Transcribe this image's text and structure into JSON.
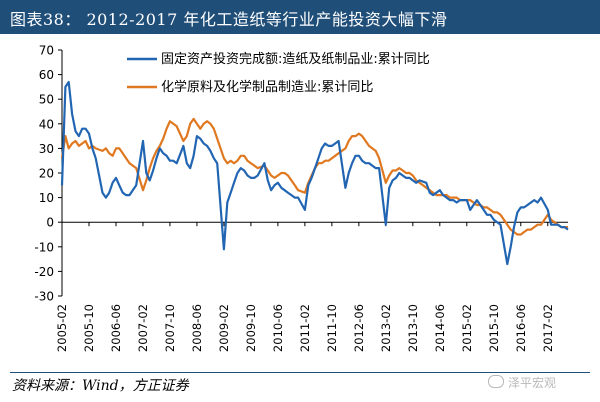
{
  "header": {
    "title": "图表38：  2012-2017 年化工造纸等行业产能投资大幅下滑"
  },
  "source": "资料来源：Wind，方正证券",
  "watermark": "泽平宏观",
  "colors": {
    "series1": "#2266b3",
    "series2": "#e07820",
    "title_bg": "#1f4e79"
  },
  "chart_data": {
    "type": "line",
    "title": "图表38：  2012-2017 年化工造纸等行业产能投资大幅下滑",
    "ylim": [
      -30,
      70
    ],
    "yticks": [
      -30,
      -20,
      -10,
      0,
      10,
      20,
      30,
      40,
      50,
      60,
      70
    ],
    "x_start": "2005-02",
    "x_end": "2017-08",
    "xtick_labels": [
      "2005-02",
      "2005-10",
      "2006-06",
      "2007-02",
      "2007-10",
      "2008-06",
      "2009-02",
      "2009-10",
      "2010-06",
      "2011-02",
      "2011-10",
      "2012-06",
      "2013-02",
      "2013-10",
      "2014-06",
      "2015-02",
      "2015-10",
      "2016-06",
      "2017-02"
    ],
    "legend_position": "top-center",
    "grid": false,
    "series": [
      {
        "name": "固定资产投资完成额:造纸及纸制品业:累计同比",
        "points": [
          [
            "2005-02",
            15
          ],
          [
            "2005-03",
            55
          ],
          [
            "2005-04",
            57
          ],
          [
            "2005-05",
            44
          ],
          [
            "2005-06",
            37
          ],
          [
            "2005-07",
            35
          ],
          [
            "2005-08",
            38
          ],
          [
            "2005-09",
            38
          ],
          [
            "2005-10",
            36
          ],
          [
            "2005-11",
            30
          ],
          [
            "2005-12",
            26
          ],
          [
            "2006-02",
            12
          ],
          [
            "2006-03",
            10
          ],
          [
            "2006-04",
            12
          ],
          [
            "2006-05",
            16
          ],
          [
            "2006-06",
            18
          ],
          [
            "2006-07",
            15
          ],
          [
            "2006-08",
            12
          ],
          [
            "2006-09",
            11
          ],
          [
            "2006-10",
            11
          ],
          [
            "2006-11",
            13
          ],
          [
            "2006-12",
            15
          ],
          [
            "2007-02",
            33
          ],
          [
            "2007-03",
            20
          ],
          [
            "2007-04",
            17
          ],
          [
            "2007-05",
            21
          ],
          [
            "2007-06",
            26
          ],
          [
            "2007-07",
            30
          ],
          [
            "2007-08",
            28
          ],
          [
            "2007-09",
            27
          ],
          [
            "2007-10",
            25
          ],
          [
            "2007-11",
            25
          ],
          [
            "2007-12",
            24
          ],
          [
            "2008-02",
            31
          ],
          [
            "2008-03",
            24
          ],
          [
            "2008-04",
            22
          ],
          [
            "2008-05",
            27
          ],
          [
            "2008-06",
            35
          ],
          [
            "2008-07",
            34
          ],
          [
            "2008-08",
            32
          ],
          [
            "2008-09",
            31
          ],
          [
            "2008-10",
            29
          ],
          [
            "2008-11",
            26
          ],
          [
            "2008-12",
            24
          ],
          [
            "2009-02",
            -11
          ],
          [
            "2009-03",
            8
          ],
          [
            "2009-04",
            12
          ],
          [
            "2009-05",
            16
          ],
          [
            "2009-06",
            20
          ],
          [
            "2009-07",
            22
          ],
          [
            "2009-08",
            21
          ],
          [
            "2009-09",
            19
          ],
          [
            "2009-10",
            18
          ],
          [
            "2009-11",
            18
          ],
          [
            "2009-12",
            19
          ],
          [
            "2010-02",
            24
          ],
          [
            "2010-03",
            17
          ],
          [
            "2010-04",
            13
          ],
          [
            "2010-05",
            15
          ],
          [
            "2010-06",
            16
          ],
          [
            "2010-07",
            14
          ],
          [
            "2010-08",
            13
          ],
          [
            "2010-09",
            12
          ],
          [
            "2010-10",
            11
          ],
          [
            "2010-11",
            10
          ],
          [
            "2010-12",
            10
          ],
          [
            "2011-02",
            5
          ],
          [
            "2011-03",
            15
          ],
          [
            "2011-04",
            18
          ],
          [
            "2011-05",
            22
          ],
          [
            "2011-06",
            26
          ],
          [
            "2011-07",
            30
          ],
          [
            "2011-08",
            32
          ],
          [
            "2011-09",
            31
          ],
          [
            "2011-10",
            31
          ],
          [
            "2011-11",
            32
          ],
          [
            "2011-12",
            33
          ],
          [
            "2012-02",
            14
          ],
          [
            "2012-03",
            20
          ],
          [
            "2012-04",
            24
          ],
          [
            "2012-05",
            27
          ],
          [
            "2012-06",
            27
          ],
          [
            "2012-07",
            25
          ],
          [
            "2012-08",
            24
          ],
          [
            "2012-09",
            24
          ],
          [
            "2012-10",
            23
          ],
          [
            "2012-11",
            22
          ],
          [
            "2012-12",
            22
          ],
          [
            "2013-02",
            -1
          ],
          [
            "2013-03",
            14
          ],
          [
            "2013-04",
            17
          ],
          [
            "2013-05",
            18
          ],
          [
            "2013-06",
            20
          ],
          [
            "2013-07",
            19
          ],
          [
            "2013-08",
            18
          ],
          [
            "2013-09",
            18
          ],
          [
            "2013-10",
            17
          ],
          [
            "2013-11",
            16
          ],
          [
            "2013-12",
            17
          ],
          [
            "2014-02",
            16
          ],
          [
            "2014-03",
            12
          ],
          [
            "2014-04",
            11
          ],
          [
            "2014-05",
            12
          ],
          [
            "2014-06",
            13
          ],
          [
            "2014-07",
            11
          ],
          [
            "2014-08",
            10
          ],
          [
            "2014-09",
            9
          ],
          [
            "2014-10",
            9
          ],
          [
            "2014-11",
            8
          ],
          [
            "2014-12",
            9
          ],
          [
            "2015-02",
            9
          ],
          [
            "2015-03",
            5
          ],
          [
            "2015-04",
            7
          ],
          [
            "2015-05",
            9
          ],
          [
            "2015-06",
            7
          ],
          [
            "2015-07",
            5
          ],
          [
            "2015-08",
            3
          ],
          [
            "2015-09",
            3
          ],
          [
            "2015-10",
            1
          ],
          [
            "2015-11",
            0
          ],
          [
            "2015-12",
            -1
          ],
          [
            "2016-02",
            -17
          ],
          [
            "2016-03",
            -10
          ],
          [
            "2016-04",
            -2
          ],
          [
            "2016-05",
            4
          ],
          [
            "2016-06",
            6
          ],
          [
            "2016-07",
            6
          ],
          [
            "2016-08",
            7
          ],
          [
            "2016-09",
            8
          ],
          [
            "2016-10",
            9
          ],
          [
            "2016-11",
            8
          ],
          [
            "2016-12",
            10
          ],
          [
            "2017-02",
            5
          ],
          [
            "2017-03",
            -1
          ],
          [
            "2017-04",
            -1
          ],
          [
            "2017-05",
            -1
          ],
          [
            "2017-06",
            -2
          ],
          [
            "2017-07",
            -2
          ],
          [
            "2017-08",
            -3
          ]
        ]
      },
      {
        "name": "化学原料及化学制品制造业:累计同比",
        "points": [
          [
            "2005-02",
            26
          ],
          [
            "2005-03",
            35
          ],
          [
            "2005-04",
            30
          ],
          [
            "2005-05",
            32
          ],
          [
            "2005-06",
            33
          ],
          [
            "2005-07",
            31
          ],
          [
            "2005-08",
            32
          ],
          [
            "2005-09",
            33
          ],
          [
            "2005-10",
            30
          ],
          [
            "2005-11",
            31
          ],
          [
            "2005-12",
            30
          ],
          [
            "2006-02",
            29
          ],
          [
            "2006-03",
            30
          ],
          [
            "2006-04",
            28
          ],
          [
            "2006-05",
            27
          ],
          [
            "2006-06",
            30
          ],
          [
            "2006-07",
            30
          ],
          [
            "2006-08",
            28
          ],
          [
            "2006-09",
            26
          ],
          [
            "2006-10",
            24
          ],
          [
            "2006-11",
            23
          ],
          [
            "2006-12",
            22
          ],
          [
            "2007-02",
            13
          ],
          [
            "2007-03",
            17
          ],
          [
            "2007-04",
            22
          ],
          [
            "2007-05",
            26
          ],
          [
            "2007-06",
            29
          ],
          [
            "2007-07",
            31
          ],
          [
            "2007-08",
            34
          ],
          [
            "2007-09",
            38
          ],
          [
            "2007-10",
            41
          ],
          [
            "2007-11",
            40
          ],
          [
            "2007-12",
            39
          ],
          [
            "2008-02",
            33
          ],
          [
            "2008-03",
            35
          ],
          [
            "2008-04",
            40
          ],
          [
            "2008-05",
            42
          ],
          [
            "2008-06",
            40
          ],
          [
            "2008-07",
            38
          ],
          [
            "2008-08",
            40
          ],
          [
            "2008-09",
            41
          ],
          [
            "2008-10",
            40
          ],
          [
            "2008-11",
            38
          ],
          [
            "2008-12",
            34
          ],
          [
            "2009-02",
            26
          ],
          [
            "2009-03",
            24
          ],
          [
            "2009-04",
            25
          ],
          [
            "2009-05",
            24
          ],
          [
            "2009-06",
            25
          ],
          [
            "2009-07",
            27
          ],
          [
            "2009-08",
            27
          ],
          [
            "2009-09",
            25
          ],
          [
            "2009-10",
            24
          ],
          [
            "2009-11",
            23
          ],
          [
            "2009-12",
            22
          ],
          [
            "2010-02",
            23
          ],
          [
            "2010-03",
            21
          ],
          [
            "2010-04",
            19
          ],
          [
            "2010-05",
            18
          ],
          [
            "2010-06",
            19
          ],
          [
            "2010-07",
            20
          ],
          [
            "2010-08",
            20
          ],
          [
            "2010-09",
            19
          ],
          [
            "2010-10",
            17
          ],
          [
            "2010-11",
            15
          ],
          [
            "2010-12",
            13
          ],
          [
            "2011-02",
            12
          ],
          [
            "2011-03",
            16
          ],
          [
            "2011-04",
            19
          ],
          [
            "2011-05",
            22
          ],
          [
            "2011-06",
            24
          ],
          [
            "2011-07",
            24
          ],
          [
            "2011-08",
            25
          ],
          [
            "2011-09",
            25
          ],
          [
            "2011-10",
            26
          ],
          [
            "2011-11",
            27
          ],
          [
            "2011-12",
            28
          ],
          [
            "2012-02",
            30
          ],
          [
            "2012-03",
            33
          ],
          [
            "2012-04",
            35
          ],
          [
            "2012-05",
            35
          ],
          [
            "2012-06",
            36
          ],
          [
            "2012-07",
            35
          ],
          [
            "2012-08",
            33
          ],
          [
            "2012-09",
            31
          ],
          [
            "2012-10",
            30
          ],
          [
            "2012-11",
            29
          ],
          [
            "2012-12",
            26
          ],
          [
            "2013-02",
            16
          ],
          [
            "2013-03",
            19
          ],
          [
            "2013-04",
            21
          ],
          [
            "2013-05",
            21
          ],
          [
            "2013-06",
            22
          ],
          [
            "2013-07",
            21
          ],
          [
            "2013-08",
            20
          ],
          [
            "2013-09",
            20
          ],
          [
            "2013-10",
            19
          ],
          [
            "2013-11",
            17
          ],
          [
            "2013-12",
            16
          ],
          [
            "2014-02",
            14
          ],
          [
            "2014-03",
            13
          ],
          [
            "2014-04",
            12
          ],
          [
            "2014-05",
            11
          ],
          [
            "2014-06",
            11
          ],
          [
            "2014-07",
            11
          ],
          [
            "2014-08",
            11
          ],
          [
            "2014-09",
            10
          ],
          [
            "2014-10",
            10
          ],
          [
            "2014-11",
            10
          ],
          [
            "2014-12",
            9
          ],
          [
            "2015-02",
            9
          ],
          [
            "2015-03",
            9
          ],
          [
            "2015-04",
            8
          ],
          [
            "2015-05",
            7
          ],
          [
            "2015-06",
            7
          ],
          [
            "2015-07",
            6
          ],
          [
            "2015-08",
            6
          ],
          [
            "2015-09",
            5
          ],
          [
            "2015-10",
            4
          ],
          [
            "2015-11",
            4
          ],
          [
            "2015-12",
            3
          ],
          [
            "2016-02",
            -1
          ],
          [
            "2016-03",
            -3
          ],
          [
            "2016-04",
            -4
          ],
          [
            "2016-05",
            -5
          ],
          [
            "2016-06",
            -5
          ],
          [
            "2016-07",
            -4
          ],
          [
            "2016-08",
            -3
          ],
          [
            "2016-09",
            -3
          ],
          [
            "2016-10",
            -2
          ],
          [
            "2016-11",
            -1
          ],
          [
            "2016-12",
            -1
          ],
          [
            "2017-02",
            3
          ],
          [
            "2017-03",
            1
          ],
          [
            "2017-04",
            0
          ],
          [
            "2017-05",
            -1
          ],
          [
            "2017-06",
            -2
          ],
          [
            "2017-07",
            -2
          ],
          [
            "2017-08",
            -2
          ]
        ]
      }
    ]
  }
}
